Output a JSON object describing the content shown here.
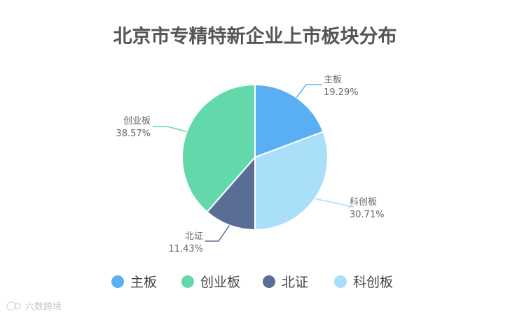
{
  "chart_data": {
    "type": "pie",
    "title": "北京市专精特新企业上市板块分布",
    "categories": [
      "主板",
      "科创板",
      "北证",
      "创业板"
    ],
    "values": [
      19.29,
      30.71,
      11.43,
      38.57
    ],
    "value_labels": [
      "19.29%",
      "30.71%",
      "11.43%",
      "38.57%"
    ],
    "colors": [
      "#5aaef4",
      "#a9dff9",
      "#5a6d96",
      "#63d9ab"
    ],
    "legend": {
      "placement": "bottom",
      "items": [
        "主板",
        "创业板",
        "北证",
        "科创板"
      ]
    }
  },
  "watermark": {
    "text": "六数跨境"
  }
}
